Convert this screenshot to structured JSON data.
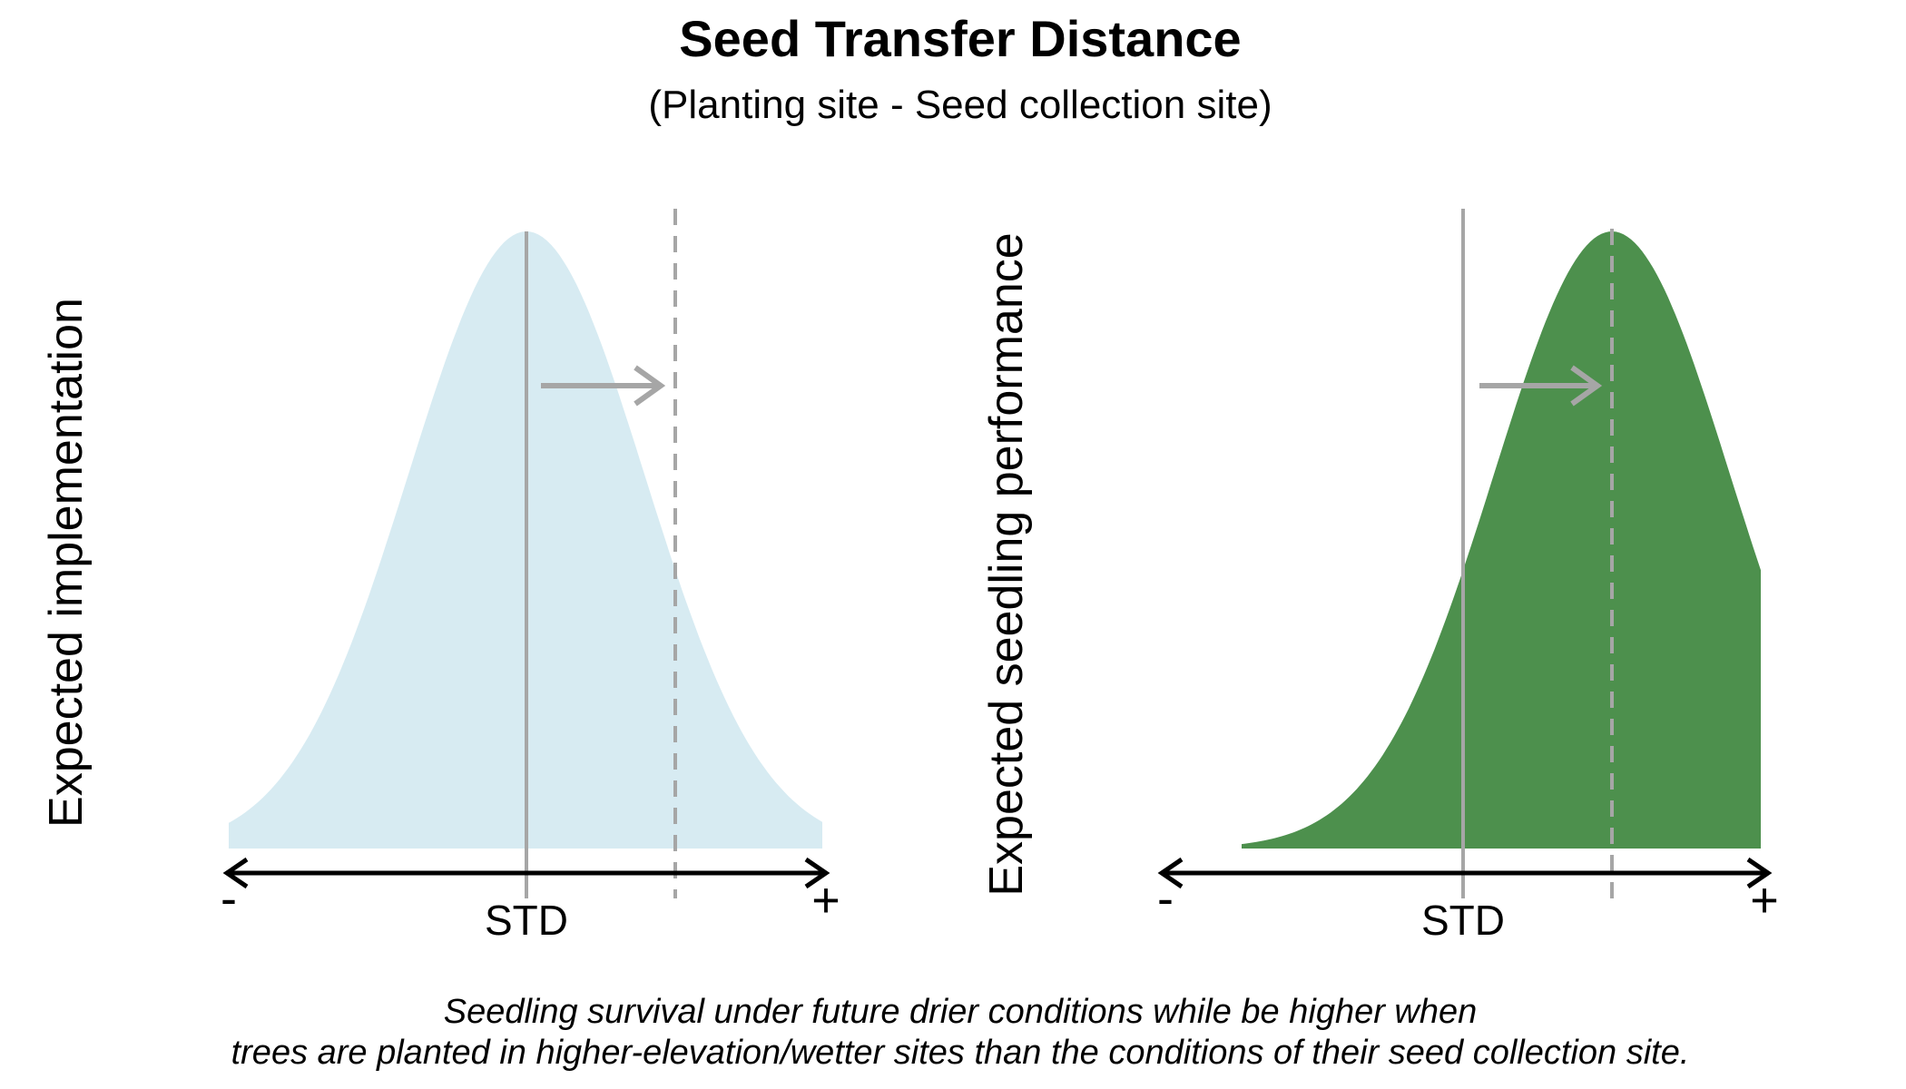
{
  "title": "Seed Transfer Distance",
  "subtitle": "(Planting site - Seed collection site)",
  "panels": [
    {
      "ylabel": "Expected implementation",
      "tick_label": "STD",
      "minus_label": "-",
      "plus_label": "+",
      "fill_color": "#d7ebf2"
    },
    {
      "ylabel": "Expected seedling performance",
      "tick_label": "STD",
      "minus_label": "-",
      "plus_label": "+",
      "fill_color": "#4d904d"
    }
  ],
  "caption": {
    "line1": "Seedling survival under future drier conditions while be higher when",
    "line2": "trees are planted in higher-elevation/wetter sites than the conditions of their seed collection site."
  },
  "colors": {
    "guide_line": "#a6a6a6",
    "axis": "#000000"
  }
}
